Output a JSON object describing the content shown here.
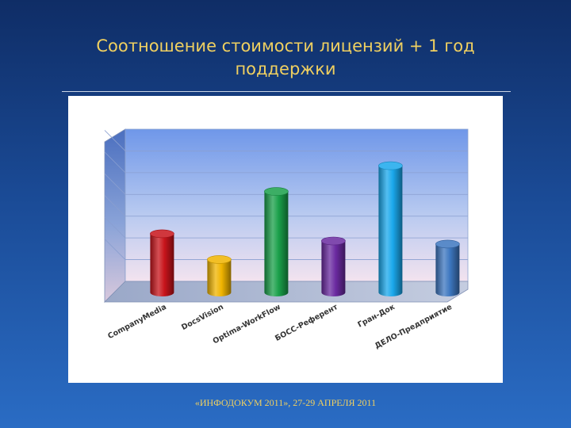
{
  "slide": {
    "title_line1": "Соотношение стоимости лицензий + 1 год",
    "title_line2": "поддержки",
    "footer": "«ИНФОДОКУМ 2011», 27-29 АПРЕЛЯ 2011"
  },
  "chart_data": {
    "type": "bar",
    "style": "3d-cylinder",
    "categories": [
      "CompanyMedia",
      "DocsVision",
      "Optima-WorkFlow",
      "БОСС-Референт",
      "Гран-Док",
      "ДЕЛО-Предприятие"
    ],
    "values": [
      2.85,
      1.6,
      4.9,
      2.5,
      6.15,
      2.35
    ],
    "colors": [
      "#c8141b",
      "#f0b400",
      "#1aa04a",
      "#6a2aa0",
      "#1aa8ec",
      "#3d77c0"
    ],
    "ylim": [
      0,
      7
    ],
    "y_gridlines": 7,
    "y_tick_labels": false,
    "grid": true,
    "legend": "none"
  }
}
